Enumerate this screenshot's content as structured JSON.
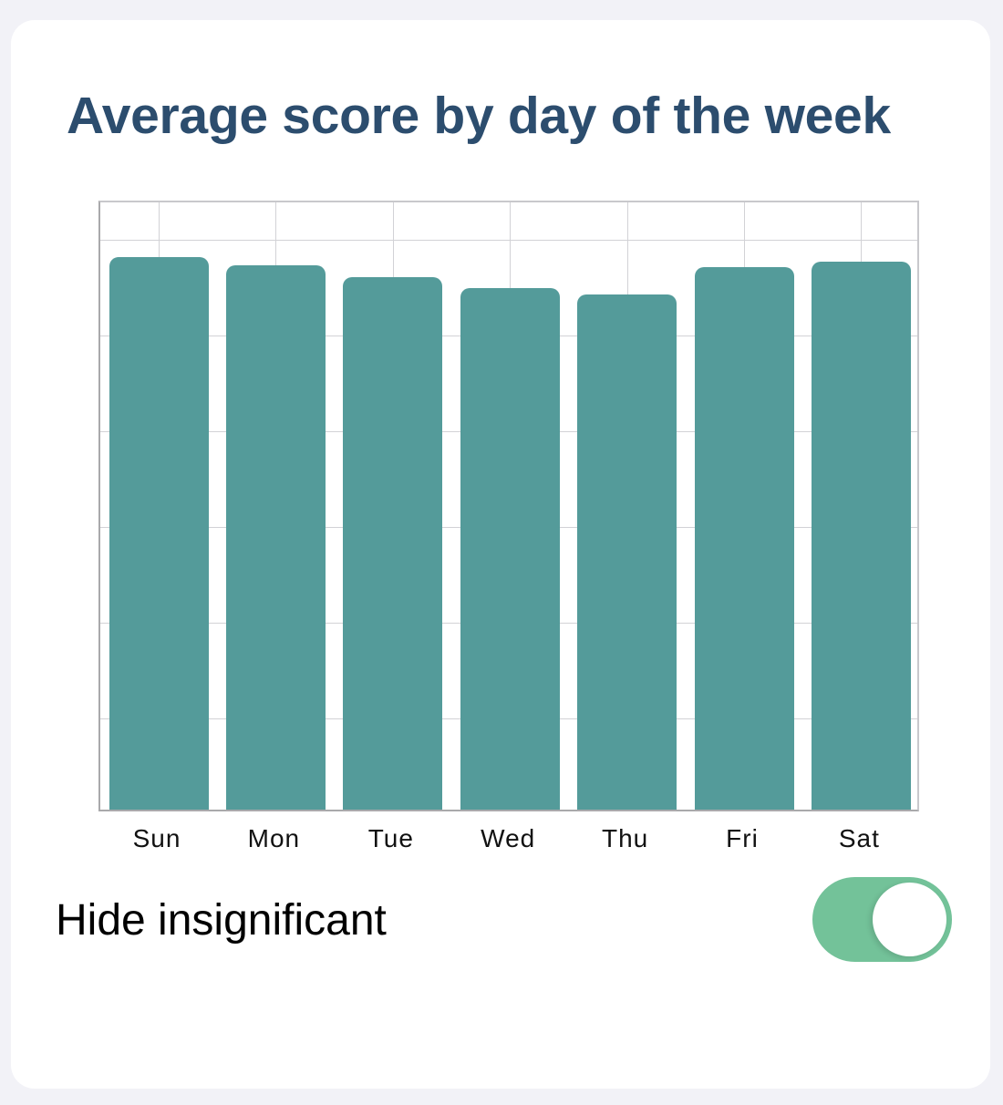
{
  "title": "Average score by day of the week",
  "chart_data": {
    "type": "bar",
    "title": "Average score by day of the week",
    "categories": [
      "Sun",
      "Mon",
      "Tue",
      "Wed",
      "Thu",
      "Fri",
      "Sat"
    ],
    "values": [
      90.7,
      89.4,
      87.5,
      85.7,
      84.6,
      89.0,
      90.0
    ],
    "values_note": "No y-axis tick labels are shown; values are relative bar heights estimated from pixels on a 0-100 scale (100 = top of plot area)",
    "xlabel": "",
    "ylabel": "",
    "ylim": [
      0,
      100
    ],
    "grid": true,
    "legend": "none",
    "bar_color": "#549b9a"
  },
  "toggle": {
    "label": "Hide insignificant",
    "checked": true,
    "color": "#73c299"
  },
  "colors": {
    "title": "#2c4d6e",
    "background": "#f2f2f7",
    "card": "#ffffff"
  }
}
